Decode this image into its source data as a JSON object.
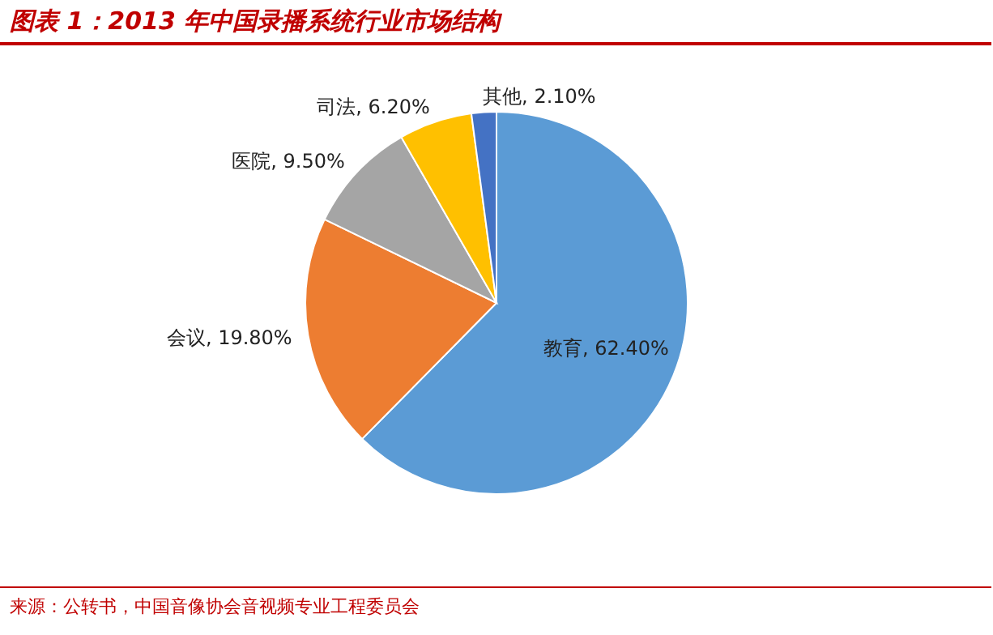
{
  "chart_data": {
    "type": "pie",
    "title": "图表 1：2013 年中国录播系统行业市场结构",
    "categories": [
      "教育",
      "会议",
      "医院",
      "司法",
      "其他"
    ],
    "values": [
      62.4,
      19.8,
      9.5,
      6.2,
      2.1
    ],
    "value_labels": [
      "62.40%",
      "19.80%",
      "9.50%",
      "6.20%",
      "2.10%"
    ],
    "colors": [
      "#5b9bd5",
      "#ed7d31",
      "#a5a5a5",
      "#ffc000",
      "#4472c4"
    ],
    "annotations": [
      "来源：公转书，中国音像协会音视频专业工程委员会"
    ]
  }
}
